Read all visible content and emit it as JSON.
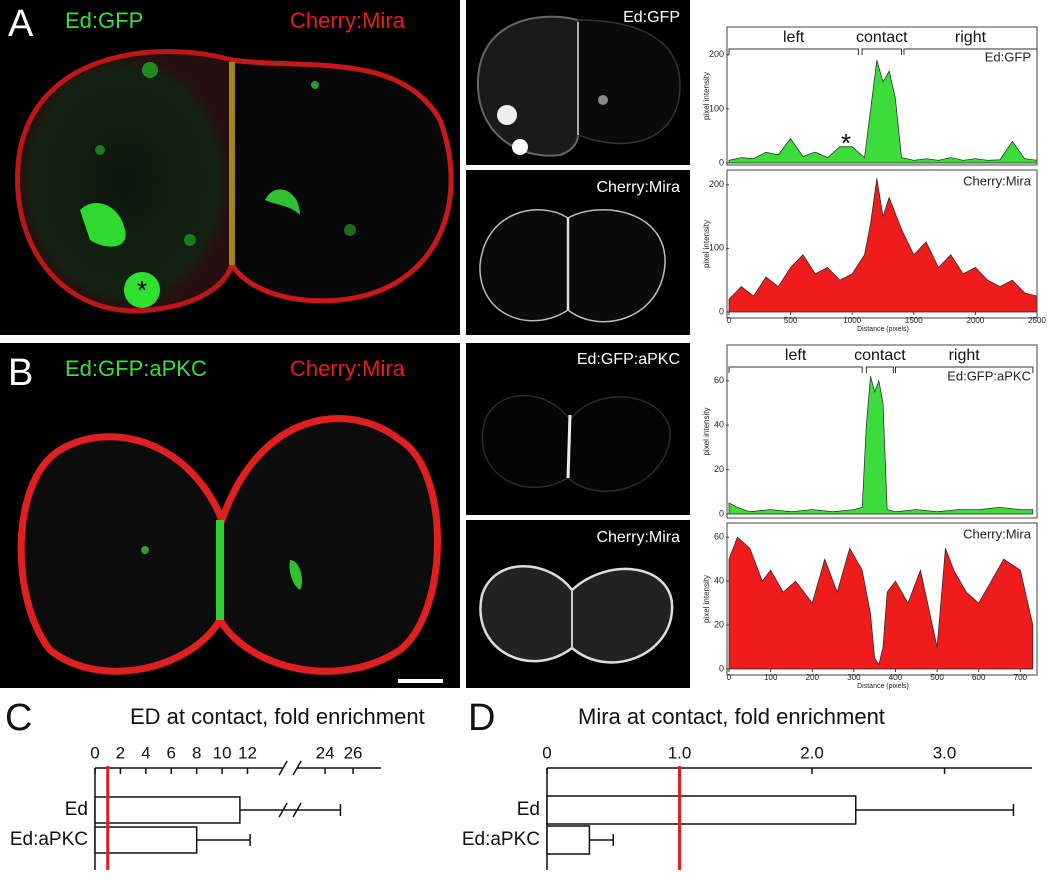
{
  "panels": {
    "A": {
      "letter": "A",
      "merge": [
        "Ed:GFP",
        "Cherry:Mira"
      ],
      "channels": [
        "Ed:GFP",
        "Cherry:Mira"
      ],
      "marker": "*"
    },
    "B": {
      "letter": "B",
      "merge": [
        "Ed:GFP:aPKC",
        "Cherry:Mira"
      ],
      "channels": [
        "Ed:GFP:aPKC",
        "Cherry:Mira"
      ]
    }
  },
  "chart_data": [
    {
      "type": "area",
      "x": [
        0,
        100,
        200,
        300,
        400,
        500,
        600,
        700,
        800,
        900,
        1000,
        1100,
        1150,
        1200,
        1250,
        1300,
        1350,
        1400,
        1500,
        1600,
        1700,
        1800,
        1900,
        2000,
        2100,
        2200,
        2300,
        2400,
        2500
      ],
      "series": [
        {
          "name": "Ed:GFP",
          "color": "#3ddc3d",
          "values": [
            5,
            10,
            8,
            20,
            15,
            45,
            12,
            20,
            10,
            30,
            30,
            10,
            100,
            190,
            150,
            170,
            120,
            10,
            5,
            8,
            5,
            10,
            5,
            8,
            5,
            6,
            40,
            8,
            5
          ]
        }
      ],
      "xlim": [
        0,
        2500
      ],
      "ylim": [
        0,
        220
      ],
      "yticks": [
        0,
        100,
        200
      ],
      "ylabel": "pixel intensity",
      "annotations": [
        {
          "text": "left",
          "x": [
            0,
            1050
          ]
        },
        {
          "text": "contact",
          "x": [
            1080,
            1400
          ]
        },
        {
          "text": "right",
          "x": [
            1420,
            2500
          ]
        },
        {
          "text": "*",
          "x": [
            950
          ],
          "y": [
            40
          ]
        }
      ]
    },
    {
      "type": "area",
      "x": [
        0,
        100,
        200,
        300,
        400,
        500,
        600,
        700,
        800,
        900,
        1000,
        1100,
        1150,
        1200,
        1250,
        1300,
        1400,
        1500,
        1600,
        1700,
        1800,
        1900,
        2000,
        2100,
        2200,
        2300,
        2400,
        2500
      ],
      "series": [
        {
          "name": "Cherry:Mira",
          "color": "#ee1c1c",
          "values": [
            20,
            40,
            25,
            55,
            40,
            70,
            90,
            60,
            70,
            50,
            60,
            90,
            140,
            210,
            150,
            180,
            130,
            90,
            110,
            70,
            90,
            60,
            70,
            50,
            40,
            50,
            30,
            25
          ]
        }
      ],
      "xlim": [
        0,
        2500
      ],
      "xticks": [
        0,
        500,
        1000,
        1500,
        2000,
        2500
      ],
      "ylim": [
        0,
        220
      ],
      "yticks": [
        0,
        100,
        200
      ],
      "xlabel": "Distance (pixels)",
      "ylabel": "pixel intensity"
    },
    {
      "type": "area",
      "x": [
        0,
        20,
        50,
        100,
        150,
        200,
        250,
        300,
        320,
        330,
        340,
        350,
        360,
        370,
        380,
        400,
        450,
        500,
        550,
        600,
        650,
        700,
        730
      ],
      "series": [
        {
          "name": "Ed:GFP:aPKC",
          "color": "#3ddc3d",
          "values": [
            5,
            3,
            1,
            2,
            1,
            2,
            1,
            2,
            3,
            40,
            62,
            55,
            60,
            50,
            2,
            1,
            2,
            1,
            2,
            2,
            3,
            2,
            2
          ]
        }
      ],
      "xlim": [
        0,
        740
      ],
      "ylim": [
        0,
        68
      ],
      "yticks": [
        0,
        20,
        40,
        60
      ],
      "ylabel": "pixel intensity",
      "annotations": [
        {
          "text": "left",
          "x": [
            0,
            320
          ]
        },
        {
          "text": "contact",
          "x": [
            330,
            395
          ]
        },
        {
          "text": "right",
          "x": [
            400,
            730
          ]
        }
      ]
    },
    {
      "type": "area",
      "x": [
        0,
        20,
        50,
        80,
        100,
        130,
        160,
        200,
        230,
        260,
        290,
        320,
        340,
        350,
        360,
        370,
        380,
        400,
        430,
        460,
        500,
        520,
        540,
        570,
        600,
        630,
        660,
        700,
        730
      ],
      "series": [
        {
          "name": "Cherry:Mira",
          "color": "#ee1c1c",
          "values": [
            50,
            60,
            55,
            40,
            45,
            35,
            40,
            30,
            50,
            35,
            55,
            45,
            25,
            5,
            2,
            10,
            35,
            40,
            30,
            45,
            10,
            55,
            45,
            35,
            30,
            40,
            50,
            45,
            20
          ]
        }
      ],
      "xlim": [
        0,
        740
      ],
      "xticks": [
        0,
        100,
        200,
        300,
        400,
        500,
        600,
        700
      ],
      "ylim": [
        0,
        66
      ],
      "yticks": [
        0,
        20,
        40,
        60
      ],
      "xlabel": "Distance (pixels)",
      "ylabel": "pixel intensity"
    },
    {
      "type": "hbar",
      "panel": "C",
      "title": "ED at contact, fold enrichment",
      "categories": [
        "Ed",
        "Ed:aPKC"
      ],
      "values": [
        11.4,
        8.0
      ],
      "errors": [
        13.7,
        4.2
      ],
      "xlim": [
        0,
        28
      ],
      "xbreak": [
        14.8,
        22
      ],
      "xticks": [
        0,
        2,
        4,
        6,
        8,
        10,
        12,
        24,
        26
      ],
      "reference_line": 1,
      "reference_color": "#e02020",
      "color": "#ffffff"
    },
    {
      "type": "hbar",
      "panel": "D",
      "title": "Mira at contact, fold enrichment",
      "categories": [
        "Ed",
        "Ed:aPKC"
      ],
      "values": [
        2.33,
        0.32
      ],
      "errors": [
        1.19,
        0.18
      ],
      "xlim": [
        0,
        3.66
      ],
      "xticks": [
        0,
        {
          "value": 1,
          "label": "1.0"
        },
        {
          "value": 2,
          "label": "2.0"
        },
        {
          "value": 3,
          "label": "3.0"
        }
      ],
      "reference_line": 1,
      "reference_color": "#e02020",
      "color": "#ffffff"
    }
  ]
}
